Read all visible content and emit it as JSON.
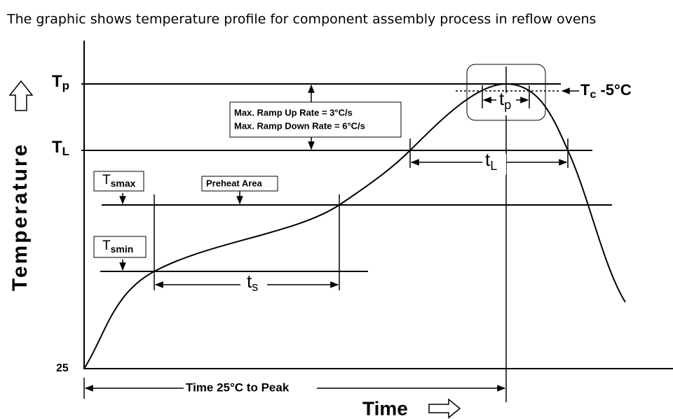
{
  "title": "The graphic shows temperature profile for component assembly process in reflow ovens",
  "axes": {
    "y_label": "Temperature",
    "x_label": "Time",
    "origin_label": "25"
  },
  "levels": {
    "tp": {
      "base": "T",
      "sub": "p"
    },
    "tl": {
      "base": "T",
      "sub": "L"
    },
    "tsmax": {
      "base": "T",
      "sub": "smax"
    },
    "tsmin": {
      "base": "T",
      "sub": "smin"
    }
  },
  "annotations": {
    "preheat": "Preheat Area",
    "ramp_up": "Max. Ramp Up Rate = 3°C/s",
    "ramp_down": "Max. Ramp Down Rate = 6°C/s",
    "tc": {
      "base": "T",
      "sub": "c",
      "rest": " -5°C"
    },
    "tp_interval": {
      "base": "t",
      "sub": "p"
    },
    "tl_interval": {
      "base": "t",
      "sub": "L"
    },
    "ts_interval": {
      "base": "t",
      "sub": "s"
    },
    "time_to_peak": "Time 25°C to Peak"
  }
}
